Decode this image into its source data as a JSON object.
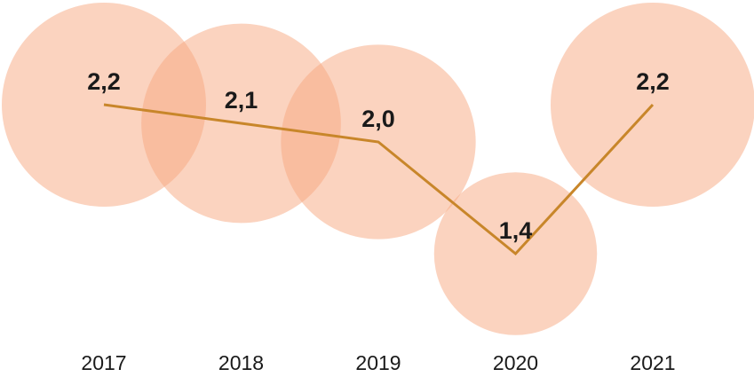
{
  "chart_data": {
    "type": "bubble-line",
    "categories": [
      "2017",
      "2018",
      "2019",
      "2020",
      "2021"
    ],
    "values": [
      2.2,
      2.1,
      2.0,
      1.4,
      2.2
    ],
    "value_labels": [
      "2,2",
      "2,1",
      "2,0",
      "1,4",
      "2,2"
    ],
    "color": "#c8862a",
    "bubble_color": "#f7a77f"
  }
}
